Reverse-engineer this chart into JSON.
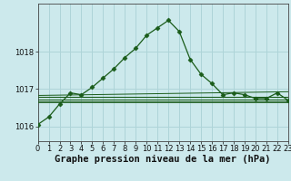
{
  "background_color": "#cce9ec",
  "grid_color": "#aed4d8",
  "line_color_dark": "#1a5c1a",
  "line_color_mid": "#2d7a2d",
  "title": "Graphe pression niveau de la mer (hPa)",
  "xlim": [
    0,
    23
  ],
  "ylim": [
    1015.6,
    1019.3
  ],
  "yticks": [
    1016,
    1017,
    1018
  ],
  "xticks": [
    0,
    1,
    2,
    3,
    4,
    5,
    6,
    7,
    8,
    9,
    10,
    11,
    12,
    13,
    14,
    15,
    16,
    17,
    18,
    19,
    20,
    21,
    22,
    23
  ],
  "main_x": [
    0,
    1,
    2,
    3,
    4,
    5,
    6,
    7,
    8,
    9,
    10,
    11,
    12,
    13,
    14,
    15,
    16,
    17,
    18,
    19,
    20,
    21,
    22,
    23
  ],
  "main_y": [
    1016.05,
    1016.25,
    1016.6,
    1016.9,
    1016.85,
    1017.05,
    1017.3,
    1017.55,
    1017.85,
    1018.1,
    1018.45,
    1018.65,
    1018.85,
    1018.55,
    1017.8,
    1017.4,
    1017.15,
    1016.85,
    1016.9,
    1016.85,
    1016.75,
    1016.75,
    1016.9,
    1016.7
  ],
  "flat_line1_y": 1016.65,
  "flat_line2_y": 1016.72,
  "flat_line3_y": 1016.8,
  "flat_line4_y": 1016.88,
  "title_fontsize": 7.5,
  "tick_fontsize": 6.0
}
